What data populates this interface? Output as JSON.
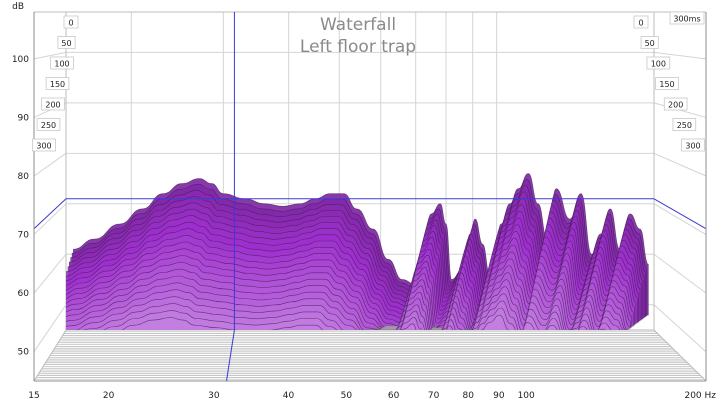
{
  "chart_data": {
    "type": "area",
    "chart_style": "3d-waterfall",
    "title": "Waterfall",
    "subtitle": "Left floor trap",
    "y_unit": "dB",
    "x_unit": "Hz",
    "x_scale": "log",
    "xlim": [
      15,
      200
    ],
    "ylim": [
      45,
      108
    ],
    "y_ticks": [
      50,
      60,
      70,
      80,
      90,
      100
    ],
    "x_ticks": [
      {
        "value": 15,
        "label": "15"
      },
      {
        "value": 20,
        "label": "20"
      },
      {
        "value": 30,
        "label": "30"
      },
      {
        "value": 40,
        "label": "40"
      },
      {
        "value": 50,
        "label": "50"
      },
      {
        "value": 60,
        "label": "60"
      },
      {
        "value": 70,
        "label": "70"
      },
      {
        "value": 80,
        "label": "80"
      },
      {
        "value": 90,
        "label": "90"
      },
      {
        "value": 100,
        "label": "100"
      },
      {
        "value": 200,
        "label": "200 Hz"
      }
    ],
    "time_axis": {
      "unit": "ms",
      "left_labels": [
        "0",
        "50",
        "100",
        "150",
        "200",
        "250",
        "300"
      ],
      "right_labels": [
        "0",
        "50",
        "100",
        "150",
        "200",
        "250",
        "300"
      ],
      "right_top_label": "300ms"
    },
    "frequency_hz": [
      15.5,
      17,
      19,
      21,
      23,
      25,
      27,
      28.5,
      30,
      33,
      36,
      39,
      42,
      45,
      48,
      51,
      54,
      58,
      62,
      66,
      70,
      72,
      75,
      78,
      80,
      82,
      86,
      89,
      91,
      94,
      97,
      99,
      102,
      106,
      110,
      115,
      120,
      125,
      130,
      138,
      145,
      152,
      158,
      165,
      172,
      180,
      188,
      195
    ],
    "series": [
      {
        "name": "0 ms",
        "values": [
          61,
          63,
          66,
          69,
          72,
          74,
          75,
          74,
          72,
          71,
          70,
          69.5,
          70,
          71,
          72,
          72,
          69,
          65,
          59,
          55,
          54,
          61,
          68,
          70,
          66,
          55,
          57,
          64,
          67,
          62,
          56,
          60,
          66,
          70,
          73,
          76,
          70,
          63,
          73,
          67,
          72,
          60,
          64,
          69,
          61,
          68,
          65,
          58
        ]
      }
    ],
    "cursor": {
      "frequency_hz": 31.5,
      "level_db": 71
    }
  }
}
